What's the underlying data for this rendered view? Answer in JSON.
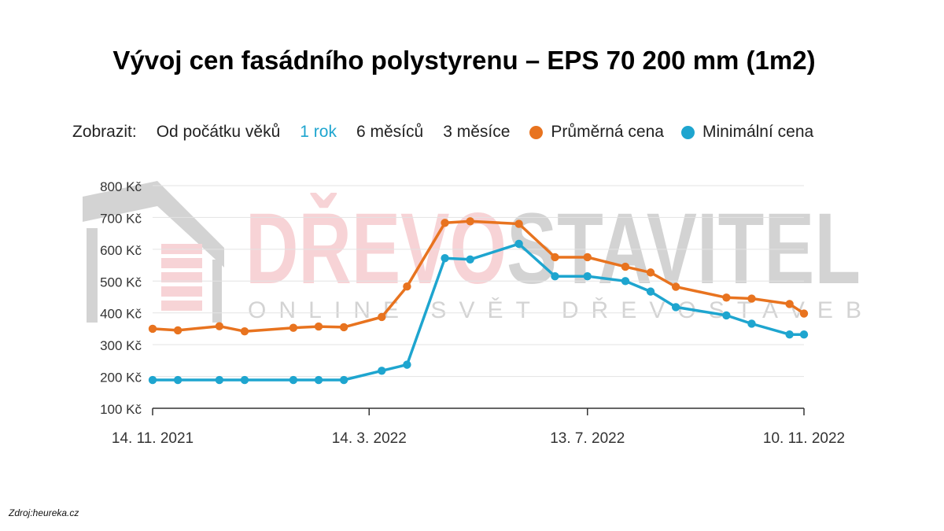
{
  "title": "Vývoj cen fasádního polystyrenu – EPS 70 200 mm (1m2)",
  "controls": {
    "label": "Zobrazit:",
    "ranges": [
      "Od počátku věků",
      "1 rok",
      "6 měsíců",
      "3 měsíce"
    ],
    "active_range": "1 rok"
  },
  "watermark": {
    "brand_part1": "DŘEVO",
    "brand_part2": "STAVITEL",
    "tagline": "ONLINE SVĚT DŘEVOSTAVEB",
    "icon": "house-icon"
  },
  "source": "Zdroj:heureka.cz",
  "colors": {
    "avg": "#e8731f",
    "min": "#1ea5cf",
    "active": "#1ea5cf"
  },
  "chart_data": {
    "type": "line",
    "ylim": [
      100,
      800
    ],
    "yticks": [
      100,
      200,
      300,
      400,
      500,
      600,
      700,
      800
    ],
    "ytick_labels": [
      "100 Kč",
      "200 Kč",
      "300 Kč",
      "400 Kč",
      "500 Kč",
      "600 Kč",
      "700 Kč",
      "800 Kč"
    ],
    "x_ticks": [
      "2021-11-14",
      "2022-03-14",
      "2022-07-13",
      "2022-11-10"
    ],
    "x_tick_labels": [
      "14. 11. 2021",
      "14. 3. 2022",
      "13. 7. 2022",
      "10. 11. 2022"
    ],
    "xlim": [
      "2021-11-14",
      "2022-11-10"
    ],
    "grid": true,
    "legend_position": "top-right",
    "series": [
      {
        "name": "Průměrná cena",
        "color": "#e8731f",
        "points": [
          [
            "2021-11-14",
            350
          ],
          [
            "2021-11-28",
            345
          ],
          [
            "2021-12-21",
            358
          ],
          [
            "2022-01-04",
            342
          ],
          [
            "2022-01-31",
            353
          ],
          [
            "2022-02-14",
            357
          ],
          [
            "2022-02-28",
            355
          ],
          [
            "2022-03-21",
            387
          ],
          [
            "2022-04-04",
            483
          ],
          [
            "2022-04-25",
            683
          ],
          [
            "2022-05-09",
            688
          ],
          [
            "2022-06-05",
            680
          ],
          [
            "2022-06-25",
            575
          ],
          [
            "2022-07-13",
            575
          ],
          [
            "2022-08-03",
            545
          ],
          [
            "2022-08-17",
            527
          ],
          [
            "2022-08-31",
            482
          ],
          [
            "2022-09-28",
            448
          ],
          [
            "2022-10-12",
            445
          ],
          [
            "2022-11-02",
            428
          ],
          [
            "2022-11-10",
            398
          ]
        ]
      },
      {
        "name": "Minimální cena",
        "color": "#1ea5cf",
        "points": [
          [
            "2021-11-14",
            189
          ],
          [
            "2021-11-28",
            189
          ],
          [
            "2021-12-21",
            189
          ],
          [
            "2022-01-04",
            189
          ],
          [
            "2022-01-31",
            189
          ],
          [
            "2022-02-14",
            189
          ],
          [
            "2022-02-28",
            189
          ],
          [
            "2022-03-21",
            218
          ],
          [
            "2022-04-04",
            237
          ],
          [
            "2022-04-25",
            572
          ],
          [
            "2022-05-09",
            568
          ],
          [
            "2022-06-05",
            617
          ],
          [
            "2022-06-25",
            515
          ],
          [
            "2022-07-13",
            515
          ],
          [
            "2022-08-03",
            500
          ],
          [
            "2022-08-17",
            467
          ],
          [
            "2022-08-31",
            418
          ],
          [
            "2022-09-28",
            392
          ],
          [
            "2022-10-12",
            366
          ],
          [
            "2022-11-02",
            332
          ],
          [
            "2022-11-10",
            332
          ]
        ]
      }
    ]
  }
}
